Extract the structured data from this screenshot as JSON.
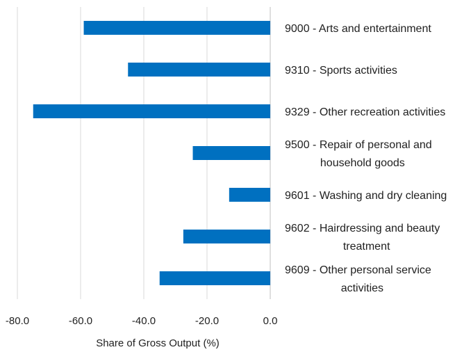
{
  "chart_data": {
    "type": "bar",
    "orientation": "horizontal",
    "categories": [
      "9000 - Arts and entertainment",
      "9310 - Sports activities",
      "9329 - Other recreation activities",
      "9500 - Repair of personal and household goods",
      "9601 - Washing and dry cleaning",
      "9602 - Hairdressing and beauty treatment",
      "9609 - Other personal service activities"
    ],
    "category_lines": [
      [
        "9000 - Arts and entertainment"
      ],
      [
        "9310 - Sports activities"
      ],
      [
        "9329 - Other recreation activities"
      ],
      [
        "9500 - Repair of personal and",
        "household goods"
      ],
      [
        "9601 - Washing and dry cleaning"
      ],
      [
        "9602 - Hairdressing and beauty",
        "treatment"
      ],
      [
        "9609 - Other personal service",
        "activities"
      ]
    ],
    "values": [
      -59.0,
      -45.0,
      -75.0,
      -24.5,
      -13.0,
      -27.5,
      -35.0
    ],
    "xlabel": "Share of Gross Output (%)",
    "ylabel": "",
    "xlim": [
      -80,
      0
    ],
    "xticks": [
      -80,
      -60,
      -40,
      -20,
      0
    ],
    "xtick_labels": [
      "-80.0",
      "-60.0",
      "-40.0",
      "-20.0",
      "0.0"
    ],
    "grid": "vertical",
    "bar_color": "#0070c0"
  }
}
